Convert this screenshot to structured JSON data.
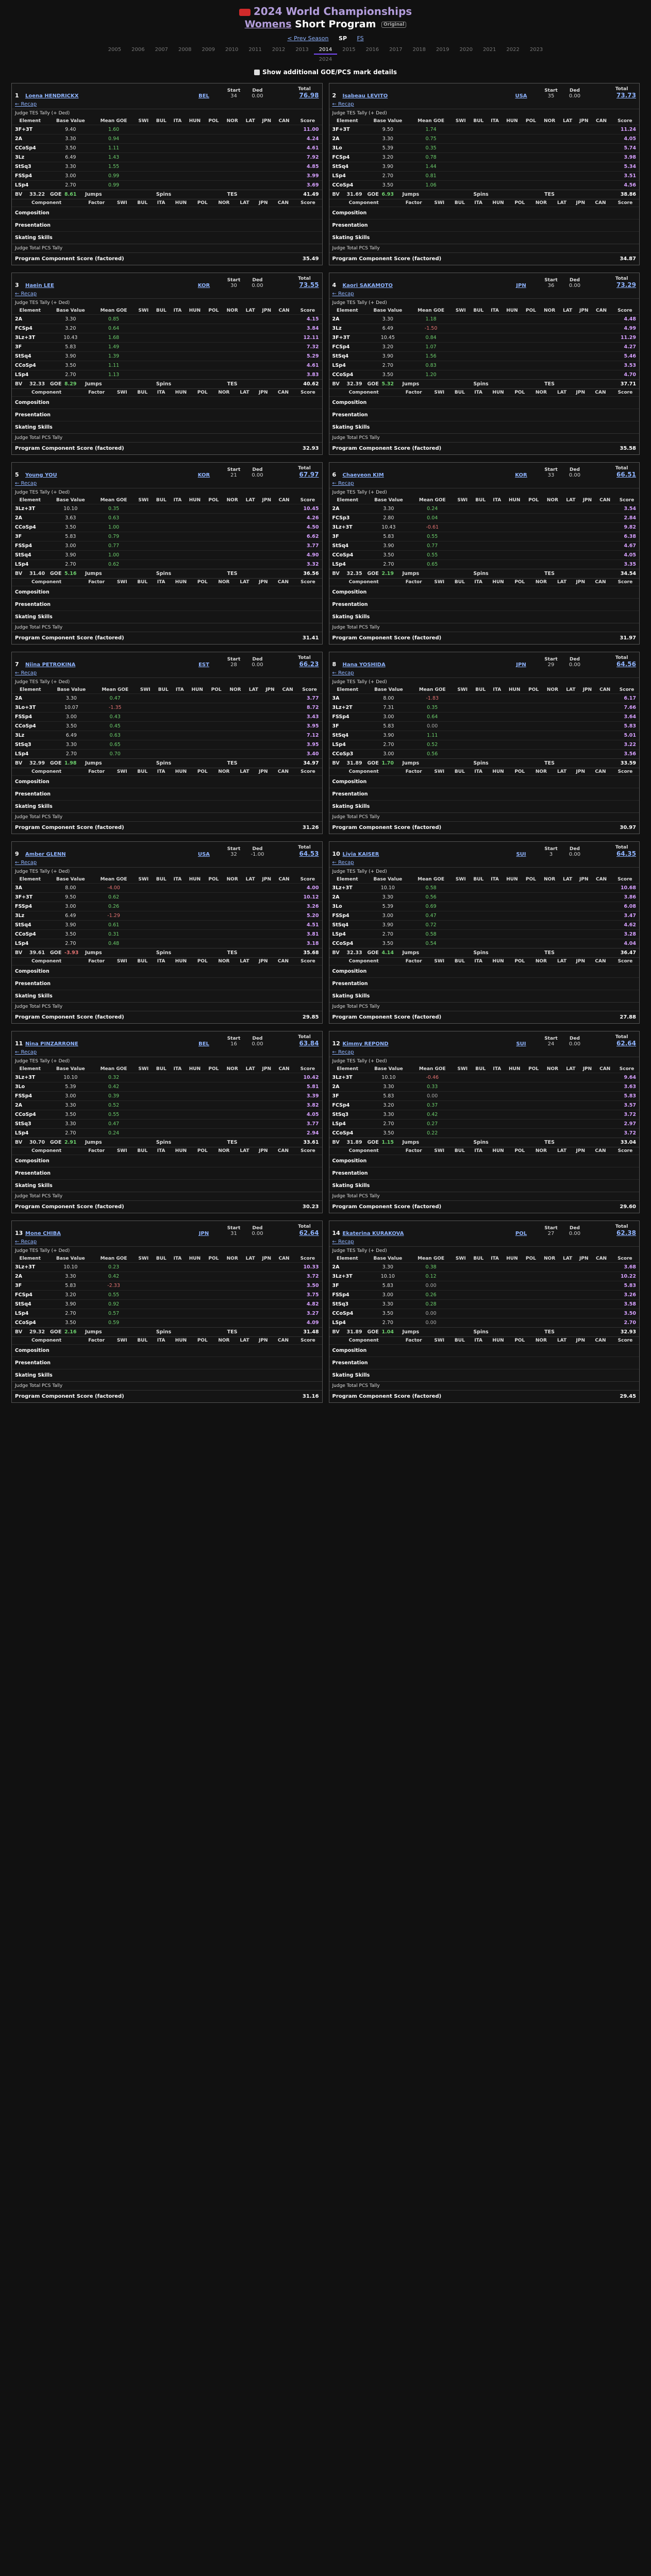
{
  "header": {
    "title": "2024 World Championships",
    "subtitle_link": "Womens",
    "subtitle_rest": "Short Program",
    "badge": "Original",
    "prev_season": "< Prev Season",
    "sp_label": "SP",
    "fs_label": "FS",
    "years": [
      "2005",
      "2006",
      "2007",
      "2008",
      "2009",
      "2010",
      "2011",
      "2012",
      "2013",
      "2014",
      "2015",
      "2016",
      "2017",
      "2018",
      "2019",
      "2020",
      "2021",
      "2022",
      "2023"
    ],
    "active_year": "2014",
    "year_extra": "2024",
    "toggle_label": "Show additional GOE/PCS mark details"
  },
  "labels": {
    "start": "Start",
    "ded": "Ded",
    "total": "Total",
    "recap": "← Recap",
    "tes_tally": "Judge TES Tally (+ Ded)",
    "element": "Element",
    "base_value": "Base Value",
    "mean_goe": "Mean GOE",
    "judges": [
      "SWI",
      "BUL",
      "ITA",
      "HUN",
      "POL",
      "NOR",
      "LAT",
      "JPN",
      "CAN"
    ],
    "score": "Score",
    "bv": "BV",
    "goe": "GOE",
    "jumps": "Jumps",
    "spins": "Spins",
    "tes": "TES",
    "component": "Component",
    "factor": "Factor",
    "components": [
      "Composition",
      "Presentation",
      "Skating Skills"
    ],
    "pcs_tally": "Judge Total PCS Tally",
    "pcs_total": "Program Component Score (factored)"
  },
  "skaters": [
    {
      "rank": "1",
      "name": "Loena HENDRICKX",
      "nat": "BEL",
      "start": "34",
      "ded": "0.00",
      "total": "76.98",
      "tes": "41.49",
      "bv": "33.22",
      "goe": "8.61",
      "pcs": "35.49",
      "elements": [
        {
          "name": "3F+3T",
          "bv": "9.40",
          "goe": "1.60",
          "score": "11.00"
        },
        {
          "name": "2A",
          "bv": "3.30",
          "goe": "0.94",
          "score": "4.24"
        },
        {
          "name": "CCoSp4",
          "bv": "3.50",
          "goe": "1.11",
          "score": "4.61"
        },
        {
          "name": "3Lz",
          "bv": "6.49",
          "goe": "1.43",
          "score": "7.92"
        },
        {
          "name": "StSq3",
          "bv": "3.30",
          "goe": "1.55",
          "score": "4.85"
        },
        {
          "name": "FSSp4",
          "bv": "3.00",
          "goe": "0.99",
          "score": "3.99"
        },
        {
          "name": "LSp4",
          "bv": "2.70",
          "goe": "0.99",
          "score": "3.69"
        }
      ]
    },
    {
      "rank": "2",
      "name": "Isabeau LEVITO",
      "nat": "USA",
      "start": "35",
      "ded": "0.00",
      "total": "73.73",
      "tes": "38.86",
      "bv": "31.69",
      "goe": "6.93",
      "pcs": "34.87",
      "elements": [
        {
          "name": "3F+3T",
          "bv": "9.50",
          "goe": "1.74",
          "score": "11.24"
        },
        {
          "name": "2A",
          "bv": "3.30",
          "goe": "0.75",
          "score": "4.05"
        },
        {
          "name": "3Lo",
          "bv": "5.39",
          "goe": "0.35",
          "score": "5.74"
        },
        {
          "name": "FCSp4",
          "bv": "3.20",
          "goe": "0.78",
          "score": "3.98"
        },
        {
          "name": "StSq4",
          "bv": "3.90",
          "goe": "1.44",
          "score": "5.34"
        },
        {
          "name": "LSp4",
          "bv": "2.70",
          "goe": "0.81",
          "score": "3.51"
        },
        {
          "name": "CCoSp4",
          "bv": "3.50",
          "goe": "1.06",
          "score": "4.56"
        }
      ]
    },
    {
      "rank": "3",
      "name": "Haein LEE",
      "nat": "KOR",
      "start": "30",
      "ded": "0.00",
      "total": "73.55",
      "tes": "40.62",
      "bv": "32.33",
      "goe": "8.29",
      "pcs": "32.93",
      "elements": [
        {
          "name": "2A",
          "bv": "3.30",
          "goe": "0.85",
          "score": "4.15"
        },
        {
          "name": "FCSp4",
          "bv": "3.20",
          "goe": "0.64",
          "score": "3.84"
        },
        {
          "name": "3Lz+3T",
          "bv": "10.43",
          "goe": "1.68",
          "score": "12.11"
        },
        {
          "name": "3F",
          "bv": "5.83",
          "goe": "1.49",
          "score": "7.32"
        },
        {
          "name": "StSq4",
          "bv": "3.90",
          "goe": "1.39",
          "score": "5.29"
        },
        {
          "name": "CCoSp4",
          "bv": "3.50",
          "goe": "1.11",
          "score": "4.61"
        },
        {
          "name": "LSp4",
          "bv": "2.70",
          "goe": "1.13",
          "score": "3.83"
        }
      ]
    },
    {
      "rank": "4",
      "name": "Kaori SAKAMOTO",
      "nat": "JPN",
      "start": "36",
      "ded": "0.00",
      "total": "73.29",
      "tes": "37.71",
      "bv": "32.39",
      "goe": "5.32",
      "pcs": "35.58",
      "elements": [
        {
          "name": "2A",
          "bv": "3.30",
          "goe": "1.18",
          "score": "4.48"
        },
        {
          "name": "3Lz",
          "bv": "6.49",
          "goe": "-1.50",
          "score": "4.99"
        },
        {
          "name": "3F+3T",
          "bv": "10.45",
          "goe": "0.84",
          "score": "11.29"
        },
        {
          "name": "FCSp4",
          "bv": "3.20",
          "goe": "1.07",
          "score": "4.27"
        },
        {
          "name": "StSq4",
          "bv": "3.90",
          "goe": "1.56",
          "score": "5.46"
        },
        {
          "name": "LSp4",
          "bv": "2.70",
          "goe": "0.83",
          "score": "3.53"
        },
        {
          "name": "CCoSp4",
          "bv": "3.50",
          "goe": "1.20",
          "score": "4.70"
        }
      ]
    },
    {
      "rank": "5",
      "name": "Young YOU",
      "nat": "KOR",
      "start": "21",
      "ded": "0.00",
      "total": "67.97",
      "tes": "36.56",
      "bv": "31.40",
      "goe": "5.16",
      "pcs": "31.41",
      "elements": [
        {
          "name": "3Lz+3T",
          "bv": "10.10",
          "goe": "0.35",
          "score": "10.45"
        },
        {
          "name": "2A",
          "bv": "3.63",
          "goe": "0.63",
          "score": "4.26"
        },
        {
          "name": "CCoSp4",
          "bv": "3.50",
          "goe": "1.00",
          "score": "4.50"
        },
        {
          "name": "3F",
          "bv": "5.83",
          "goe": "0.79",
          "score": "6.62"
        },
        {
          "name": "FSSp4",
          "bv": "3.00",
          "goe": "0.77",
          "score": "3.77"
        },
        {
          "name": "StSq4",
          "bv": "3.90",
          "goe": "1.00",
          "score": "4.90"
        },
        {
          "name": "LSp4",
          "bv": "2.70",
          "goe": "0.62",
          "score": "3.32"
        }
      ]
    },
    {
      "rank": "6",
      "name": "Chaeyeon KIM",
      "nat": "KOR",
      "start": "33",
      "ded": "0.00",
      "total": "66.51",
      "tes": "34.54",
      "bv": "32.35",
      "goe": "2.19",
      "pcs": "31.97",
      "elements": [
        {
          "name": "2A",
          "bv": "3.30",
          "goe": "0.24",
          "score": "3.54"
        },
        {
          "name": "FCSp3",
          "bv": "2.80",
          "goe": "0.04",
          "score": "2.84"
        },
        {
          "name": "3Lz+3T",
          "bv": "10.43",
          "goe": "-0.61",
          "score": "9.82"
        },
        {
          "name": "3F",
          "bv": "5.83",
          "goe": "0.55",
          "score": "6.38"
        },
        {
          "name": "StSq4",
          "bv": "3.90",
          "goe": "0.77",
          "score": "4.67"
        },
        {
          "name": "CCoSp4",
          "bv": "3.50",
          "goe": "0.55",
          "score": "4.05"
        },
        {
          "name": "LSp4",
          "bv": "2.70",
          "goe": "0.65",
          "score": "3.35"
        }
      ]
    },
    {
      "rank": "7",
      "name": "Niina PETROKINA",
      "nat": "EST",
      "start": "28",
      "ded": "0.00",
      "total": "66.23",
      "tes": "34.97",
      "bv": "32.99",
      "goe": "1.98",
      "pcs": "31.26",
      "elements": [
        {
          "name": "2A",
          "bv": "3.30",
          "goe": "0.47",
          "score": "3.77"
        },
        {
          "name": "3Lo+3T",
          "bv": "10.07",
          "goe": "-1.35",
          "score": "8.72"
        },
        {
          "name": "FSSp4",
          "bv": "3.00",
          "goe": "0.43",
          "score": "3.43"
        },
        {
          "name": "CCoSp4",
          "bv": "3.50",
          "goe": "0.45",
          "score": "3.95"
        },
        {
          "name": "3Lz",
          "bv": "6.49",
          "goe": "0.63",
          "score": "7.12"
        },
        {
          "name": "StSq3",
          "bv": "3.30",
          "goe": "0.65",
          "score": "3.95"
        },
        {
          "name": "LSp4",
          "bv": "2.70",
          "goe": "0.70",
          "score": "3.40"
        }
      ]
    },
    {
      "rank": "8",
      "name": "Hana YOSHIDA",
      "nat": "JPN",
      "start": "29",
      "ded": "0.00",
      "total": "64.56",
      "tes": "33.59",
      "bv": "31.89",
      "goe": "1.70",
      "pcs": "30.97",
      "elements": [
        {
          "name": "3A",
          "bv": "8.00",
          "goe": "-1.83",
          "score": "6.17"
        },
        {
          "name": "3Lz+2T",
          "bv": "7.31",
          "goe": "0.35",
          "score": "7.66"
        },
        {
          "name": "FSSp4",
          "bv": "3.00",
          "goe": "0.64",
          "score": "3.64"
        },
        {
          "name": "3F",
          "bv": "5.83",
          "goe": "0.00",
          "score": "5.83"
        },
        {
          "name": "StSq4",
          "bv": "3.90",
          "goe": "1.11",
          "score": "5.01"
        },
        {
          "name": "LSp4",
          "bv": "2.70",
          "goe": "0.52",
          "score": "3.22"
        },
        {
          "name": "CCoSp3",
          "bv": "3.00",
          "goe": "0.56",
          "score": "3.56"
        }
      ]
    },
    {
      "rank": "9",
      "name": "Amber GLENN",
      "nat": "USA",
      "start": "32",
      "ded": "-1.00",
      "total": "64.53",
      "tes": "35.68",
      "bv": "39.61",
      "goe": "-3.93",
      "pcs": "29.85",
      "elements": [
        {
          "name": "3A",
          "bv": "8.00",
          "goe": "-4.00",
          "score": "4.00"
        },
        {
          "name": "3F+3T",
          "bv": "9.50",
          "goe": "0.62",
          "score": "10.12"
        },
        {
          "name": "FSSp4",
          "bv": "3.00",
          "goe": "0.26",
          "score": "3.26"
        },
        {
          "name": "3Lz",
          "bv": "6.49",
          "goe": "-1.29",
          "score": "5.20"
        },
        {
          "name": "StSq4",
          "bv": "3.90",
          "goe": "0.61",
          "score": "4.51"
        },
        {
          "name": "CCoSp4",
          "bv": "3.50",
          "goe": "0.31",
          "score": "3.81"
        },
        {
          "name": "LSp4",
          "bv": "2.70",
          "goe": "0.48",
          "score": "3.18"
        }
      ]
    },
    {
      "rank": "10",
      "name": "Livia KAISER",
      "nat": "SUI",
      "start": "3",
      "ded": "0.00",
      "total": "64.35",
      "tes": "36.47",
      "bv": "32.33",
      "goe": "4.14",
      "pcs": "27.88",
      "elements": [
        {
          "name": "3Lz+3T",
          "bv": "10.10",
          "goe": "0.58",
          "score": "10.68"
        },
        {
          "name": "2A",
          "bv": "3.30",
          "goe": "0.56",
          "score": "3.86"
        },
        {
          "name": "3Lo",
          "bv": "5.39",
          "goe": "0.69",
          "score": "6.08"
        },
        {
          "name": "FSSp4",
          "bv": "3.00",
          "goe": "0.47",
          "score": "3.47"
        },
        {
          "name": "StSq4",
          "bv": "3.90",
          "goe": "0.72",
          "score": "4.62"
        },
        {
          "name": "LSp4",
          "bv": "2.70",
          "goe": "0.58",
          "score": "3.28"
        },
        {
          "name": "CCoSp4",
          "bv": "3.50",
          "goe": "0.54",
          "score": "4.04"
        }
      ]
    },
    {
      "rank": "11",
      "name": "Nina PINZARRONE",
      "nat": "BEL",
      "start": "16",
      "ded": "0.00",
      "total": "63.84",
      "tes": "33.61",
      "bv": "30.70",
      "goe": "2.91",
      "pcs": "30.23",
      "elements": [
        {
          "name": "3Lz+3T",
          "bv": "10.10",
          "goe": "0.32",
          "score": "10.42"
        },
        {
          "name": "3Lo",
          "bv": "5.39",
          "goe": "0.42",
          "score": "5.81"
        },
        {
          "name": "FSSp4",
          "bv": "3.00",
          "goe": "0.39",
          "score": "3.39"
        },
        {
          "name": "2A",
          "bv": "3.30",
          "goe": "0.52",
          "score": "3.82"
        },
        {
          "name": "CCoSp4",
          "bv": "3.50",
          "goe": "0.55",
          "score": "4.05"
        },
        {
          "name": "StSq3",
          "bv": "3.30",
          "goe": "0.47",
          "score": "3.77"
        },
        {
          "name": "LSp4",
          "bv": "2.70",
          "goe": "0.24",
          "score": "2.94"
        }
      ]
    },
    {
      "rank": "12",
      "name": "Kimmy REPOND",
      "nat": "SUI",
      "start": "24",
      "ded": "0.00",
      "total": "62.64",
      "tes": "33.04",
      "bv": "31.89",
      "goe": "1.15",
      "pcs": "29.60",
      "elements": [
        {
          "name": "3Lz+3T",
          "bv": "10.10",
          "goe": "-0.46",
          "score": "9.64"
        },
        {
          "name": "2A",
          "bv": "3.30",
          "goe": "0.33",
          "score": "3.63"
        },
        {
          "name": "3F",
          "bv": "5.83",
          "goe": "0.00",
          "score": "5.83"
        },
        {
          "name": "FCSp4",
          "bv": "3.20",
          "goe": "0.37",
          "score": "3.57"
        },
        {
          "name": "StSq3",
          "bv": "3.30",
          "goe": "0.42",
          "score": "3.72"
        },
        {
          "name": "LSp4",
          "bv": "2.70",
          "goe": "0.27",
          "score": "2.97"
        },
        {
          "name": "CCoSp4",
          "bv": "3.50",
          "goe": "0.22",
          "score": "3.72"
        }
      ]
    },
    {
      "rank": "13",
      "name": "Mone CHIBA",
      "nat": "JPN",
      "start": "31",
      "ded": "0.00",
      "total": "62.64",
      "tes": "31.48",
      "bv": "29.32",
      "goe": "2.16",
      "pcs": "31.16",
      "elements": [
        {
          "name": "3Lz+3T",
          "bv": "10.10",
          "goe": "0.23",
          "score": "10.33"
        },
        {
          "name": "2A",
          "bv": "3.30",
          "goe": "0.42",
          "score": "3.72"
        },
        {
          "name": "3F",
          "bv": "5.83",
          "goe": "-2.33",
          "score": "3.50"
        },
        {
          "name": "FCSp4",
          "bv": "3.20",
          "goe": "0.55",
          "score": "3.75"
        },
        {
          "name": "StSq4",
          "bv": "3.90",
          "goe": "0.92",
          "score": "4.82"
        },
        {
          "name": "LSp4",
          "bv": "2.70",
          "goe": "0.57",
          "score": "3.27"
        },
        {
          "name": "CCoSp4",
          "bv": "3.50",
          "goe": "0.59",
          "score": "4.09"
        }
      ]
    },
    {
      "rank": "14",
      "name": "Ekaterina KURAKOVA",
      "nat": "POL",
      "start": "27",
      "ded": "0.00",
      "total": "62.38",
      "tes": "32.93",
      "bv": "31.89",
      "goe": "1.04",
      "pcs": "29.45",
      "elements": [
        {
          "name": "2A",
          "bv": "3.30",
          "goe": "0.38",
          "score": "3.68"
        },
        {
          "name": "3Lz+3T",
          "bv": "10.10",
          "goe": "0.12",
          "score": "10.22"
        },
        {
          "name": "3F",
          "bv": "5.83",
          "goe": "0.00",
          "score": "5.83"
        },
        {
          "name": "FSSp4",
          "bv": "3.00",
          "goe": "0.26",
          "score": "3.26"
        },
        {
          "name": "StSq3",
          "bv": "3.30",
          "goe": "0.28",
          "score": "3.58"
        },
        {
          "name": "CCoSp4",
          "bv": "3.50",
          "goe": "0.00",
          "score": "3.50"
        },
        {
          "name": "LSp4",
          "bv": "2.70",
          "goe": "0.00",
          "score": "2.70"
        }
      ]
    }
  ]
}
